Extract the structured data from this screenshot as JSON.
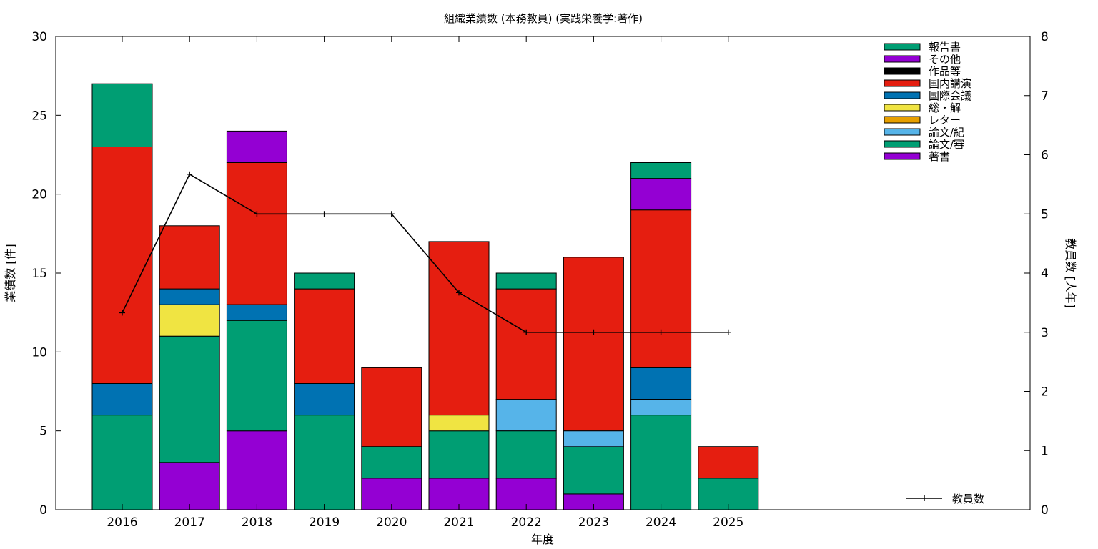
{
  "chart_data": {
    "type": "bar",
    "stacked": true,
    "title": "組織業績数 (本務教員) (実践栄養学:著作)",
    "xlabel": "年度",
    "ylabel": "業績数 [件]",
    "y2label": "教員数 [人年]",
    "categories": [
      "2016",
      "2017",
      "2018",
      "2019",
      "2020",
      "2021",
      "2022",
      "2023",
      "2024",
      "2025"
    ],
    "ylim": [
      0,
      30
    ],
    "y2lim": [
      0,
      8
    ],
    "yticks": [
      0,
      5,
      10,
      15,
      20,
      25,
      30
    ],
    "y2ticks": [
      0,
      1,
      2,
      3,
      4,
      5,
      6,
      7,
      8
    ],
    "grid": false,
    "legend_position": "top-right",
    "series": [
      {
        "name": "著書",
        "color": "#9400d3",
        "values": [
          0,
          3,
          5,
          0,
          2,
          2,
          2,
          1,
          0,
          0
        ]
      },
      {
        "name": "論文/審",
        "color": "#009e73",
        "values": [
          6,
          8,
          7,
          6,
          2,
          3,
          3,
          3,
          6,
          2
        ]
      },
      {
        "name": "論文/紀",
        "color": "#56b4e9",
        "values": [
          0,
          0,
          0,
          0,
          0,
          0,
          2,
          1,
          1,
          0
        ]
      },
      {
        "name": "レター",
        "color": "#e69f00",
        "values": [
          0,
          0,
          0,
          0,
          0,
          0,
          0,
          0,
          0,
          0
        ]
      },
      {
        "name": "総・解",
        "color": "#f0e442",
        "values": [
          0,
          2,
          0,
          0,
          0,
          1,
          0,
          0,
          0,
          0
        ]
      },
      {
        "name": "国際会議",
        "color": "#0072b2",
        "values": [
          2,
          1,
          1,
          2,
          0,
          0,
          0,
          0,
          2,
          0
        ]
      },
      {
        "name": "国内講演",
        "color": "#e51e10",
        "values": [
          15,
          4,
          9,
          6,
          5,
          11,
          7,
          11,
          10,
          2
        ]
      },
      {
        "name": "作品等",
        "color": "#000000",
        "values": [
          0,
          0,
          0,
          0,
          0,
          0,
          0,
          0,
          0,
          0
        ]
      },
      {
        "name": "その他",
        "color": "#9400d3",
        "values": [
          0,
          0,
          2,
          0,
          0,
          0,
          0,
          0,
          2,
          0
        ]
      },
      {
        "name": "報告書",
        "color": "#009e73",
        "values": [
          4,
          0,
          0,
          1,
          0,
          0,
          1,
          0,
          1,
          0
        ]
      }
    ],
    "line_series": {
      "name": "教員数",
      "axis": "y2",
      "color": "#000000",
      "values": [
        3.33,
        5.67,
        5,
        5,
        5,
        3.67,
        3,
        3,
        3,
        3
      ]
    }
  }
}
